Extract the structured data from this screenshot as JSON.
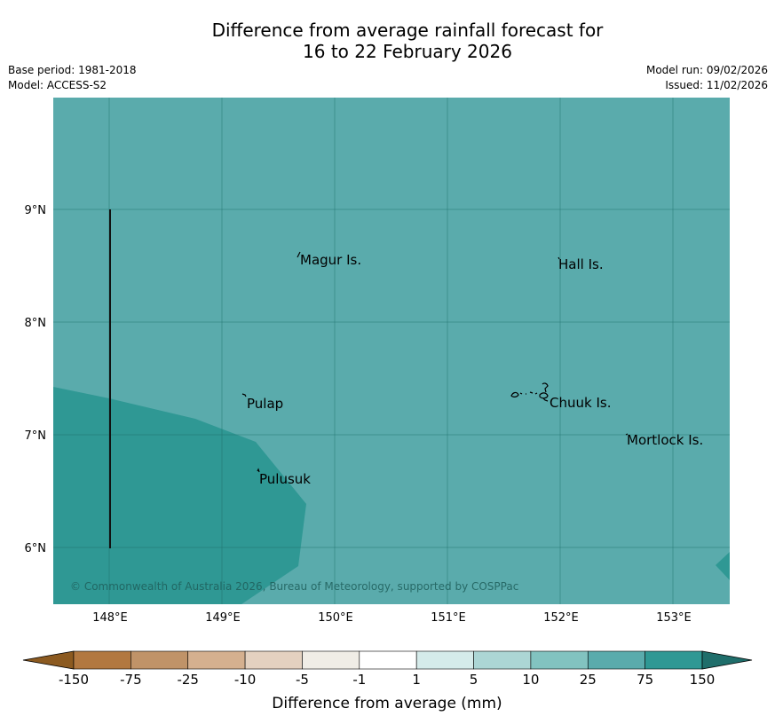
{
  "title_line1": "Difference from average rainfall forecast for",
  "title_line2": "16 to 22 February 2026",
  "meta_left": [
    "Base period: 1981-2018",
    "Model: ACCESS-S2"
  ],
  "meta_right": [
    "Model run: 09/02/2026",
    "Issued: 11/02/2026"
  ],
  "copyright": "© Commonwealth of Australia 2026, Bureau of Meteorology, supported by COSPPac",
  "map": {
    "lon_range": [
      147.5,
      153.5
    ],
    "lat_range": [
      5.5,
      10.0
    ],
    "x_ticks": [
      "148°E",
      "149°E",
      "150°E",
      "151°E",
      "152°E",
      "153°E"
    ],
    "y_ticks": [
      "9°N",
      "8°N",
      "7°N",
      "6°N"
    ],
    "background_category": "25 to 75",
    "places": [
      {
        "name": "Magur Is.",
        "lon": 149.7,
        "lat": 8.55
      },
      {
        "name": "Hall Is.",
        "lon": 151.98,
        "lat": 8.52
      },
      {
        "name": "Pulap",
        "lon": 149.2,
        "lat": 7.27
      },
      {
        "name": "Chuuk Is.",
        "lon": 151.9,
        "lat": 7.28
      },
      {
        "name": "Mortlock Is.",
        "lon": 152.6,
        "lat": 6.95
      },
      {
        "name": "Pulusuk",
        "lon": 149.32,
        "lat": 6.6
      }
    ]
  },
  "colorbar": {
    "label": "Difference from average (mm)",
    "ticks": [
      "-150",
      "-75",
      "-25",
      "-10",
      "-5",
      "-1",
      "1",
      "5",
      "10",
      "25",
      "75",
      "150"
    ],
    "colors": [
      "#8c5a20",
      "#b27840",
      "#c09368",
      "#d5b08f",
      "#e4d1c0",
      "#f0ede6",
      "#ffffff",
      "#d5ebea",
      "#acd6d5",
      "#82c3c0",
      "#5aabac",
      "#2f9894",
      "#1f6e6b"
    ]
  }
}
